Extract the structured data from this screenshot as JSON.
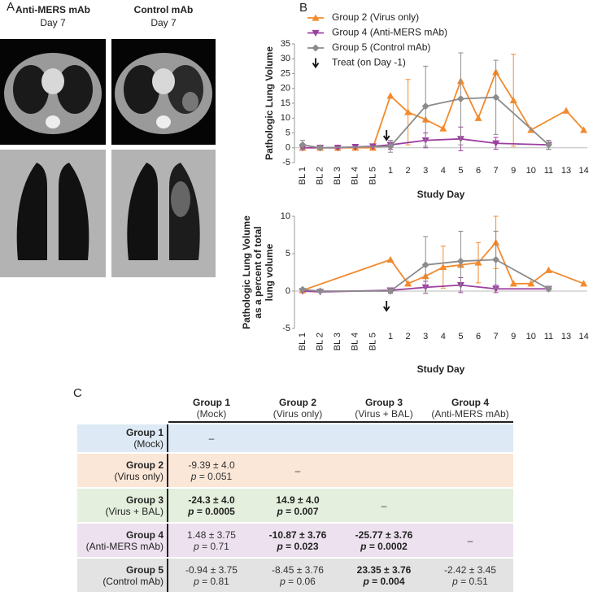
{
  "panel_a": {
    "label": "A",
    "columns": [
      {
        "title": "Anti-MERS mAb",
        "subtitle": "Day 7"
      },
      {
        "title": "Control mAb",
        "subtitle": "Day 7"
      }
    ]
  },
  "panel_b": {
    "label": "B"
  },
  "chart_data": [
    {
      "type": "line",
      "y_label": [
        "Pathologic Lung Volume"
      ],
      "x_label": "Study Day",
      "categories": [
        "BL 1",
        "BL 2",
        "BL 3",
        "BL 4",
        "BL 5",
        "1",
        "2",
        "3",
        "4",
        "5",
        "6",
        "7",
        "9",
        "10",
        "11",
        "13",
        "14"
      ],
      "ylim": [
        -5,
        35
      ],
      "yticks": [
        -5,
        0,
        5,
        10,
        15,
        20,
        25,
        30,
        35
      ],
      "legend": "upper left",
      "treat_label": "Treat (on Day -1)",
      "series": [
        {
          "name": "Group 2 (Virus only)",
          "color": "#f28a2e",
          "marker": "triangle-up",
          "x": [
            "BL 1",
            "BL 2",
            "BL 3",
            "BL 4",
            "BL 5",
            "1",
            "2",
            "3",
            "4",
            "5",
            "6",
            "7",
            "9",
            "10",
            "13",
            "14"
          ],
          "values": [
            0,
            0,
            0,
            0,
            0,
            17.5,
            12,
            9.5,
            6.5,
            22.5,
            10,
            25.5,
            16,
            6,
            12.5,
            6
          ],
          "errors": [
            null,
            null,
            null,
            null,
            null,
            null,
            11,
            null,
            null,
            null,
            null,
            null,
            15.5,
            null,
            null,
            null
          ]
        },
        {
          "name": "Group 4 (Anti-MERS mAb)",
          "color": "#9c3f9f",
          "marker": "triangle-down",
          "x": [
            "BL 1",
            "BL 2",
            "BL 3",
            "BL 4",
            "BL 5",
            "1",
            "3",
            "5",
            "7",
            "11"
          ],
          "values": [
            0,
            0,
            0,
            0.3,
            0.5,
            1,
            2.5,
            3,
            1.5,
            1
          ],
          "errors": [
            null,
            null,
            null,
            null,
            null,
            1.5,
            2.5,
            4,
            2,
            1.5
          ]
        },
        {
          "name": "Group 5 (Control mAb)",
          "color": "#8c8c8c",
          "marker": "diamond",
          "x": [
            "BL 1",
            "BL 2",
            "1",
            "3",
            "5",
            "7",
            "11"
          ],
          "values": [
            1,
            0,
            0.5,
            14,
            16.5,
            17,
            1
          ],
          "errors": [
            1.5,
            null,
            2,
            13.5,
            15.5,
            12.5,
            1.5
          ]
        }
      ]
    },
    {
      "type": "line",
      "y_label": [
        "Pathologic Lung Volume",
        "as a percent of total",
        "lung volume"
      ],
      "x_label": "Study Day",
      "categories": [
        "BL 1",
        "BL 2",
        "BL 3",
        "BL 4",
        "BL 5",
        "1",
        "2",
        "3",
        "4",
        "5",
        "6",
        "7",
        "9",
        "10",
        "11",
        "13",
        "14"
      ],
      "ylim": [
        -5,
        10
      ],
      "yticks": [
        -5,
        0,
        5,
        10
      ],
      "series": [
        {
          "color": "#f28a2e",
          "marker": "triangle-up",
          "x": [
            "BL 1",
            "1",
            "2",
            "3",
            "4",
            "5",
            "6",
            "7",
            "9",
            "10",
            "11",
            "14"
          ],
          "values": [
            0.1,
            4.2,
            1,
            2,
            3.2,
            3.5,
            3.8,
            6.5,
            1,
            1,
            2.8,
            1
          ],
          "errors": [
            null,
            null,
            null,
            null,
            2.8,
            null,
            2.7,
            3.5,
            null,
            null,
            null,
            null
          ]
        },
        {
          "color": "#9c3f9f",
          "marker": "triangle-down",
          "x": [
            "BL 1",
            "BL 2",
            "1",
            "3",
            "5",
            "7",
            "11"
          ],
          "values": [
            0,
            -0.1,
            0.1,
            0.5,
            0.8,
            0.3,
            0.3
          ],
          "errors": [
            null,
            null,
            0.3,
            0.8,
            1,
            0.5,
            0.3
          ]
        },
        {
          "color": "#8c8c8c",
          "marker": "diamond",
          "x": [
            "BL 1",
            "BL 2",
            "1",
            "3",
            "5",
            "7",
            "11"
          ],
          "values": [
            0.2,
            0,
            0,
            3.5,
            4,
            4.2,
            0.3
          ],
          "errors": [
            null,
            null,
            0.3,
            3.8,
            4,
            3.8,
            0.3
          ]
        }
      ]
    }
  ],
  "panel_c": {
    "label": "C",
    "table": {
      "p_symbol": "p",
      "columns": [
        {
          "name": "Group 1",
          "sub": "(Mock)"
        },
        {
          "name": "Group 2",
          "sub": "(Virus only)"
        },
        {
          "name": "Group 3",
          "sub": "(Virus + BAL)"
        },
        {
          "name": "Group 4",
          "sub": "(Anti-MERS mAb)"
        }
      ],
      "rows": [
        {
          "name": "Group 1",
          "sub": "(Mock)",
          "color": "#dde9f4",
          "cells": [
            {
              "text": "–"
            }
          ]
        },
        {
          "name": "Group 2",
          "sub": "(Virus only)",
          "color": "#fbe7d8",
          "cells": [
            {
              "estimate": "-9.39 ± 4.0",
              "p": "= 0.051",
              "bold": false
            },
            {
              "text": "–"
            }
          ]
        },
        {
          "name": "Group 3",
          "sub": "(Virus + BAL)",
          "color": "#e4efdd",
          "cells": [
            {
              "estimate": "-24.3 ± 4.0",
              "p": "= 0.0005",
              "bold": true
            },
            {
              "estimate": "14.9 ± 4.0",
              "p": "= 0.007",
              "bold": true
            },
            {
              "text": "–"
            }
          ]
        },
        {
          "name": "Group 4",
          "sub": "(Anti-MERS mAb)",
          "color": "#ede1ef",
          "cells": [
            {
              "estimate": "1.48 ± 3.75",
              "p": "= 0.71",
              "bold": false
            },
            {
              "estimate": "-10.87 ± 3.76",
              "p": "= 0.023",
              "bold": true
            },
            {
              "estimate": "-25.77 ± 3.76",
              "p": "= 0.0002",
              "bold": true
            },
            {
              "text": "–"
            }
          ]
        },
        {
          "name": "Group 5",
          "sub": "(Control mAb)",
          "color": "#e3e3e3",
          "cells": [
            {
              "estimate": "-0.94 ± 3.75",
              "p": "= 0.81",
              "bold": false
            },
            {
              "estimate": "-8.45 ± 3.76",
              "p": "= 0.06",
              "bold": false
            },
            {
              "estimate": "23.35 ± 3.76",
              "p": "= 0.004",
              "bold": true
            },
            {
              "estimate": "-2.42 ± 3.45",
              "p": "= 0.51",
              "bold": false
            }
          ]
        }
      ]
    }
  }
}
